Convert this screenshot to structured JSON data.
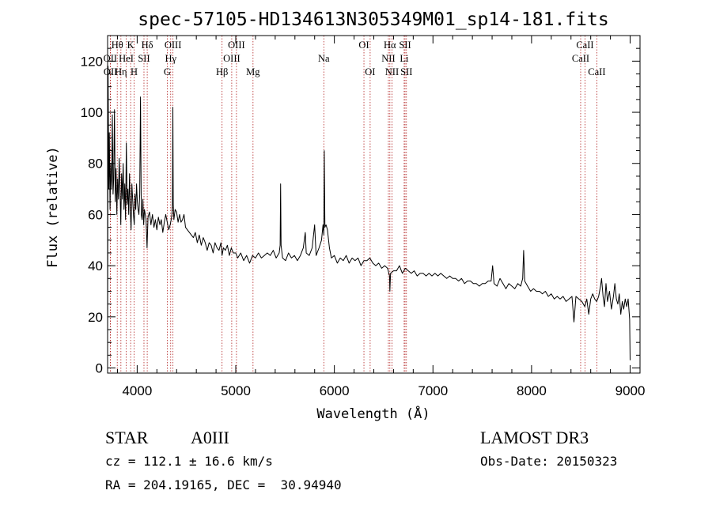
{
  "title": "spec-57105-HD134613N305349M01_sp14-181.fits",
  "info": {
    "class": "STAR",
    "subclass": "A0III",
    "survey": "LAMOST DR3",
    "cz": "cz = 112.1 ± 16.6 km/s",
    "obs_date": "Obs-Date: 20150323",
    "coords": "RA = 204.19165, DEC =  30.94940"
  },
  "colors": {
    "spectrum": "#000000",
    "line_marker": "#b22222",
    "axes": "#000000"
  },
  "chart_data": {
    "type": "line",
    "title": "spec-57105-HD134613N305349M01_sp14-181.fits",
    "xlabel": "Wavelength (Å)",
    "ylabel": "Flux (relative)",
    "xlim": [
      3700,
      9100
    ],
    "ylim": [
      -2,
      130
    ],
    "xticks": [
      4000,
      5000,
      6000,
      7000,
      8000,
      9000
    ],
    "yticks": [
      0,
      20,
      40,
      60,
      80,
      100,
      120
    ],
    "grid": false,
    "series": [
      {
        "points": [
          [
            3700,
            3
          ],
          [
            3705,
            118
          ],
          [
            3712,
            70
          ],
          [
            3718,
            92
          ],
          [
            3725,
            62
          ],
          [
            3732,
            80
          ],
          [
            3740,
            70
          ],
          [
            3748,
            99
          ],
          [
            3755,
            68
          ],
          [
            3762,
            74
          ],
          [
            3770,
            101
          ],
          [
            3778,
            65
          ],
          [
            3786,
            78
          ],
          [
            3794,
            60
          ],
          [
            3802,
            74
          ],
          [
            3810,
            66
          ],
          [
            3818,
            82
          ],
          [
            3826,
            70
          ],
          [
            3834,
            56
          ],
          [
            3842,
            76
          ],
          [
            3850,
            66
          ],
          [
            3858,
            80
          ],
          [
            3866,
            62
          ],
          [
            3874,
            72
          ],
          [
            3882,
            58
          ],
          [
            3890,
            88
          ],
          [
            3898,
            64
          ],
          [
            3906,
            70
          ],
          [
            3914,
            60
          ],
          [
            3922,
            76
          ],
          [
            3930,
            62
          ],
          [
            3938,
            54
          ],
          [
            3946,
            72
          ],
          [
            3954,
            66
          ],
          [
            3962,
            60
          ],
          [
            3970,
            56
          ],
          [
            3978,
            68
          ],
          [
            3986,
            62
          ],
          [
            3994,
            72
          ],
          [
            4002,
            65
          ],
          [
            4010,
            62
          ],
          [
            4018,
            60
          ],
          [
            4026,
            68
          ],
          [
            4034,
            106
          ],
          [
            4042,
            60
          ],
          [
            4050,
            58
          ],
          [
            4058,
            66
          ],
          [
            4066,
            56
          ],
          [
            4074,
            62
          ],
          [
            4082,
            60
          ],
          [
            4090,
            58
          ],
          [
            4100,
            47
          ],
          [
            4110,
            59
          ],
          [
            4125,
            61
          ],
          [
            4140,
            56
          ],
          [
            4155,
            60
          ],
          [
            4170,
            55
          ],
          [
            4185,
            58
          ],
          [
            4200,
            54
          ],
          [
            4215,
            59
          ],
          [
            4230,
            56
          ],
          [
            4245,
            58
          ],
          [
            4260,
            53
          ],
          [
            4275,
            57
          ],
          [
            4290,
            60
          ],
          [
            4305,
            57
          ],
          [
            4320,
            54
          ],
          [
            4335,
            56
          ],
          [
            4345,
            58
          ],
          [
            4352,
            60
          ],
          [
            4358,
            64
          ],
          [
            4362,
            102
          ],
          [
            4366,
            64
          ],
          [
            4372,
            58
          ],
          [
            4385,
            62
          ],
          [
            4400,
            61
          ],
          [
            4415,
            57
          ],
          [
            4430,
            60
          ],
          [
            4445,
            57
          ],
          [
            4460,
            58
          ],
          [
            4475,
            60
          ],
          [
            4490,
            55
          ],
          [
            4510,
            54
          ],
          [
            4530,
            53
          ],
          [
            4550,
            52
          ],
          [
            4570,
            51
          ],
          [
            4590,
            53
          ],
          [
            4610,
            49
          ],
          [
            4630,
            52
          ],
          [
            4650,
            48
          ],
          [
            4670,
            51
          ],
          [
            4690,
            49
          ],
          [
            4710,
            46
          ],
          [
            4730,
            49
          ],
          [
            4750,
            48
          ],
          [
            4770,
            45
          ],
          [
            4790,
            49
          ],
          [
            4810,
            47
          ],
          [
            4830,
            46
          ],
          [
            4850,
            49
          ],
          [
            4861,
            44
          ],
          [
            4875,
            47
          ],
          [
            4895,
            46
          ],
          [
            4915,
            48
          ],
          [
            4935,
            44
          ],
          [
            4955,
            47
          ],
          [
            4975,
            45
          ],
          [
            5000,
            45
          ],
          [
            5020,
            43
          ],
          [
            5050,
            45
          ],
          [
            5080,
            42
          ],
          [
            5110,
            44
          ],
          [
            5140,
            41
          ],
          [
            5170,
            44
          ],
          [
            5200,
            43
          ],
          [
            5230,
            45
          ],
          [
            5260,
            43
          ],
          [
            5290,
            44
          ],
          [
            5320,
            45
          ],
          [
            5350,
            44
          ],
          [
            5380,
            46
          ],
          [
            5410,
            43
          ],
          [
            5440,
            45
          ],
          [
            5450,
            48
          ],
          [
            5455,
            72
          ],
          [
            5460,
            48
          ],
          [
            5475,
            43
          ],
          [
            5505,
            42
          ],
          [
            5535,
            45
          ],
          [
            5565,
            43
          ],
          [
            5595,
            44
          ],
          [
            5625,
            42
          ],
          [
            5655,
            44
          ],
          [
            5685,
            47
          ],
          [
            5705,
            53
          ],
          [
            5715,
            45
          ],
          [
            5745,
            44
          ],
          [
            5775,
            47
          ],
          [
            5800,
            56
          ],
          [
            5815,
            44
          ],
          [
            5845,
            47
          ],
          [
            5870,
            50
          ],
          [
            5885,
            56
          ],
          [
            5893,
            52
          ],
          [
            5898,
            85
          ],
          [
            5904,
            55
          ],
          [
            5915,
            56
          ],
          [
            5930,
            54
          ],
          [
            5950,
            47
          ],
          [
            5970,
            43
          ],
          [
            6000,
            44
          ],
          [
            6030,
            41
          ],
          [
            6060,
            43
          ],
          [
            6090,
            42
          ],
          [
            6120,
            44
          ],
          [
            6150,
            41
          ],
          [
            6180,
            43
          ],
          [
            6210,
            42
          ],
          [
            6240,
            43
          ],
          [
            6270,
            40
          ],
          [
            6300,
            42
          ],
          [
            6330,
            42
          ],
          [
            6360,
            43
          ],
          [
            6390,
            41
          ],
          [
            6420,
            40
          ],
          [
            6450,
            41
          ],
          [
            6480,
            39
          ],
          [
            6510,
            40
          ],
          [
            6540,
            39
          ],
          [
            6560,
            36
          ],
          [
            6563,
            30
          ],
          [
            6570,
            37
          ],
          [
            6600,
            38
          ],
          [
            6630,
            38
          ],
          [
            6660,
            40
          ],
          [
            6690,
            37
          ],
          [
            6720,
            39
          ],
          [
            6750,
            38
          ],
          [
            6780,
            37
          ],
          [
            6810,
            38
          ],
          [
            6840,
            36
          ],
          [
            6870,
            37
          ],
          [
            6900,
            37
          ],
          [
            6930,
            36
          ],
          [
            6960,
            37
          ],
          [
            6990,
            36
          ],
          [
            7020,
            37
          ],
          [
            7050,
            36
          ],
          [
            7080,
            37
          ],
          [
            7110,
            36
          ],
          [
            7140,
            35
          ],
          [
            7170,
            36
          ],
          [
            7200,
            35
          ],
          [
            7230,
            35
          ],
          [
            7260,
            34
          ],
          [
            7290,
            35
          ],
          [
            7320,
            33
          ],
          [
            7350,
            34
          ],
          [
            7380,
            34
          ],
          [
            7410,
            33
          ],
          [
            7440,
            33
          ],
          [
            7470,
            32
          ],
          [
            7500,
            33
          ],
          [
            7530,
            33
          ],
          [
            7560,
            34
          ],
          [
            7590,
            34
          ],
          [
            7605,
            40
          ],
          [
            7620,
            33
          ],
          [
            7650,
            32
          ],
          [
            7680,
            35
          ],
          [
            7710,
            33
          ],
          [
            7740,
            31
          ],
          [
            7770,
            33
          ],
          [
            7800,
            32
          ],
          [
            7830,
            31
          ],
          [
            7860,
            33
          ],
          [
            7890,
            32
          ],
          [
            7910,
            35
          ],
          [
            7920,
            46
          ],
          [
            7930,
            34
          ],
          [
            7960,
            32
          ],
          [
            7990,
            30
          ],
          [
            8020,
            31
          ],
          [
            8050,
            30
          ],
          [
            8080,
            30
          ],
          [
            8110,
            29
          ],
          [
            8140,
            30
          ],
          [
            8170,
            28
          ],
          [
            8200,
            29
          ],
          [
            8230,
            27
          ],
          [
            8260,
            28
          ],
          [
            8290,
            27
          ],
          [
            8320,
            28
          ],
          [
            8350,
            26
          ],
          [
            8380,
            27
          ],
          [
            8410,
            28
          ],
          [
            8430,
            18
          ],
          [
            8450,
            28
          ],
          [
            8480,
            27
          ],
          [
            8510,
            26
          ],
          [
            8540,
            24
          ],
          [
            8560,
            27
          ],
          [
            8580,
            21
          ],
          [
            8600,
            27
          ],
          [
            8620,
            29
          ],
          [
            8640,
            27
          ],
          [
            8660,
            26
          ],
          [
            8680,
            28
          ],
          [
            8700,
            32
          ],
          [
            8710,
            35
          ],
          [
            8725,
            28
          ],
          [
            8740,
            24
          ],
          [
            8755,
            33
          ],
          [
            8770,
            26
          ],
          [
            8790,
            30
          ],
          [
            8810,
            23
          ],
          [
            8830,
            28
          ],
          [
            8845,
            33
          ],
          [
            8860,
            27
          ],
          [
            8875,
            25
          ],
          [
            8890,
            29
          ],
          [
            8905,
            21
          ],
          [
            8920,
            26
          ],
          [
            8935,
            23
          ],
          [
            8950,
            27
          ],
          [
            8965,
            24
          ],
          [
            8980,
            27
          ],
          [
            8995,
            19
          ],
          [
            9000,
            3
          ]
        ]
      }
    ],
    "spectral_lines": [
      {
        "label": "Hθ",
        "wave": 3798,
        "row": 1
      },
      {
        "label": "OII",
        "wave": 3727,
        "row": 2
      },
      {
        "label": "OII",
        "wave": 3729,
        "row": 3
      },
      {
        "label": "HeI",
        "wave": 3889,
        "row": 2
      },
      {
        "label": "Hη",
        "wave": 3835,
        "row": 3
      },
      {
        "label": "K",
        "wave": 3934,
        "row": 1
      },
      {
        "label": "SII",
        "wave": 4069,
        "row": 2
      },
      {
        "label": "H",
        "wave": 3969,
        "row": 3
      },
      {
        "label": "Hδ",
        "wave": 4102,
        "row": 1
      },
      {
        "label": "OIII",
        "wave": 4363,
        "row": 1
      },
      {
        "label": "Hγ",
        "wave": 4340,
        "row": 2
      },
      {
        "label": "G",
        "wave": 4305,
        "row": 3
      },
      {
        "label": "OIII",
        "wave": 5007,
        "row": 1
      },
      {
        "label": "OIII",
        "wave": 4959,
        "row": 2
      },
      {
        "label": "Hβ",
        "wave": 4861,
        "row": 3
      },
      {
        "label": "Mg",
        "wave": 5175,
        "row": 3
      },
      {
        "label": "Na",
        "wave": 5893,
        "row": 2
      },
      {
        "label": "OI",
        "wave": 6300,
        "row": 1
      },
      {
        "label": "OI",
        "wave": 6363,
        "row": 3
      },
      {
        "label": "Hα",
        "wave": 6563,
        "row": 1
      },
      {
        "label": "SII",
        "wave": 6717,
        "row": 1
      },
      {
        "label": "NII",
        "wave": 6548,
        "row": 2
      },
      {
        "label": "Li",
        "wave": 6708,
        "row": 2
      },
      {
        "label": "NII",
        "wave": 6584,
        "row": 3
      },
      {
        "label": "SII",
        "wave": 6731,
        "row": 3
      },
      {
        "label": "CaII",
        "wave": 8542,
        "row": 1
      },
      {
        "label": "CaII",
        "wave": 8498,
        "row": 2
      },
      {
        "label": "CaII",
        "wave": 8662,
        "row": 3
      }
    ]
  }
}
